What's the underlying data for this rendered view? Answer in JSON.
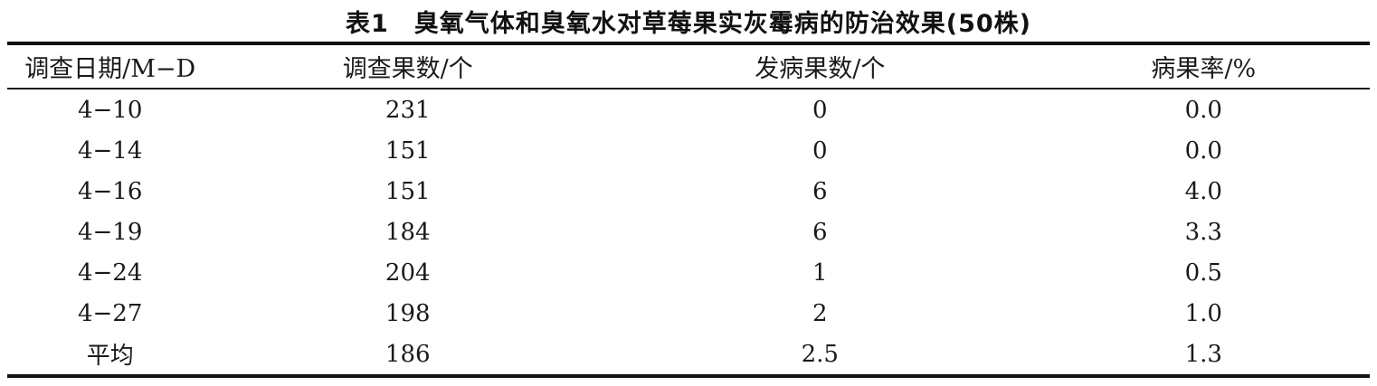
{
  "page": {
    "title": "表1　臭氧气体和臭氧水对草莓果实灰霉病的防治效果(50株)"
  },
  "table": {
    "columns": [
      "调查日期/M−D",
      "调查果数/个",
      "发病果数/个",
      "病果率/%"
    ],
    "rows": [
      [
        "4−10",
        "231",
        "0",
        "0.0"
      ],
      [
        "4−14",
        "151",
        "0",
        "0.0"
      ],
      [
        "4−16",
        "151",
        "6",
        "4.0"
      ],
      [
        "4−19",
        "184",
        "6",
        "3.3"
      ],
      [
        "4−24",
        "204",
        "1",
        "0.5"
      ],
      [
        "4−27",
        "198",
        "2",
        "1.0"
      ],
      [
        "平均",
        "186",
        "2.5",
        "1.3"
      ]
    ]
  },
  "colors": {
    "background": "#ffffff",
    "text": "#1a1a1a",
    "rule": "#111111"
  }
}
